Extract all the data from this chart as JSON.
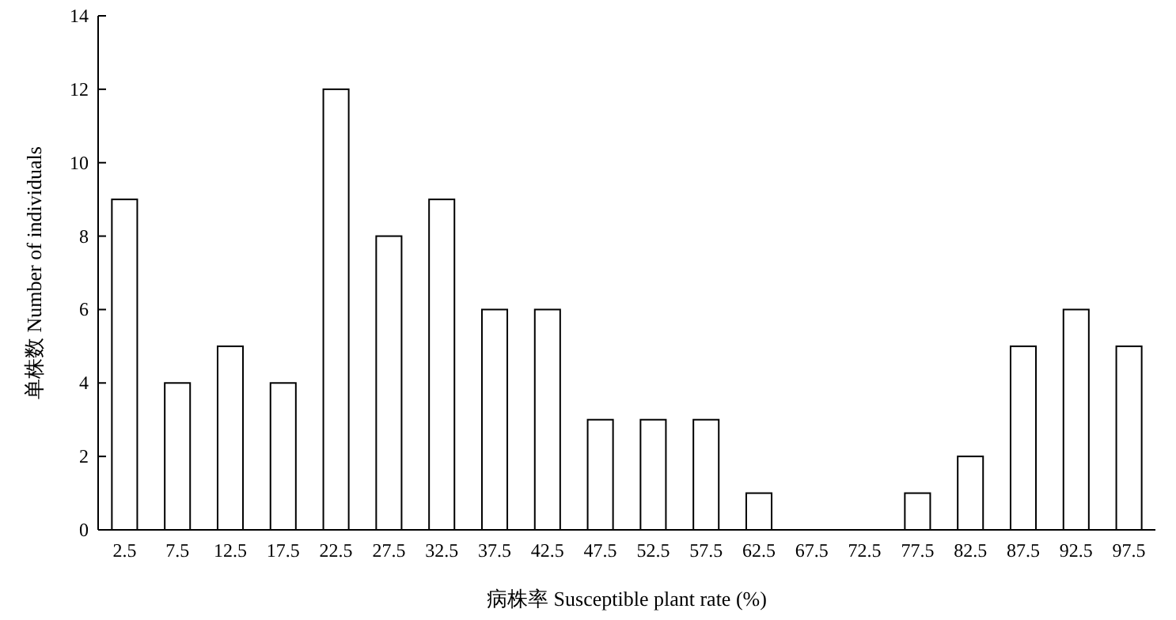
{
  "chart_data": {
    "type": "bar",
    "xlabel": "病株率 Susceptible plant rate (%)",
    "ylabel": "单株数 Number of individuals",
    "categories": [
      "2.5",
      "7.5",
      "12.5",
      "17.5",
      "22.5",
      "27.5",
      "32.5",
      "37.5",
      "42.5",
      "47.5",
      "52.5",
      "57.5",
      "62.5",
      "67.5",
      "72.5",
      "77.5",
      "82.5",
      "87.5",
      "92.5",
      "97.5"
    ],
    "values": [
      9,
      4,
      5,
      4,
      12,
      8,
      9,
      6,
      6,
      3,
      3,
      3,
      1,
      0,
      0,
      1,
      2,
      5,
      6,
      5
    ],
    "color": "#ffffff",
    "ylim": [
      0,
      14
    ],
    "yticks": [
      0,
      2,
      4,
      6,
      8,
      10,
      12,
      14
    ],
    "grid": false
  }
}
